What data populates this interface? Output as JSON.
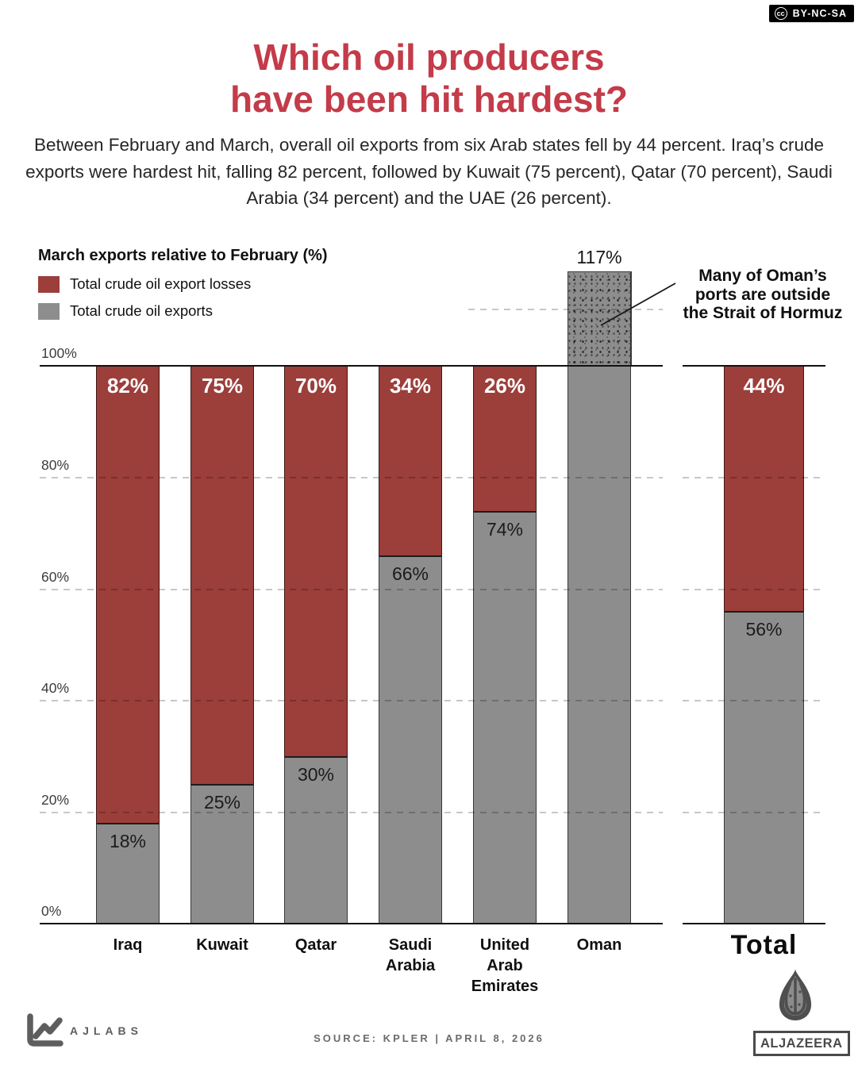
{
  "cc_badge": {
    "icon_text": "cc",
    "label": "BY-NC-SA"
  },
  "header": {
    "title_line1": "Which oil producers",
    "title_line2": "have been hit hardest?",
    "subtitle": "Between February and March, overall oil exports from six Arab states fell by 44 percent. Iraq’s crude exports were hardest hit, falling 82 percent, followed by Kuwait (75 percent), Qatar (70 percent), Saudi Arabia (34 percent) and the UAE (26 percent)."
  },
  "legend": {
    "title": "March exports relative to February (%)",
    "items": [
      {
        "label": "Total crude oil export losses",
        "color": "#9c3e3a"
      },
      {
        "label": "Total crude oil exports",
        "color": "#8d8d8d"
      }
    ]
  },
  "chart_data": {
    "type": "bar",
    "stacked": true,
    "title": "March exports relative to February (%)",
    "categories": [
      "Iraq",
      "Kuwait",
      "Qatar",
      "Saudi Arabia",
      "United Arab Emirates",
      "Oman"
    ],
    "categories_display": [
      "Iraq",
      "Kuwait",
      "Qatar",
      "Saudi\nArabia",
      "United\nArab\nEmirates",
      "Oman"
    ],
    "series": [
      {
        "name": "Total crude oil export losses",
        "color": "#9c3e3a",
        "values": [
          82,
          75,
          70,
          34,
          26,
          0
        ]
      },
      {
        "name": "Total crude oil exports",
        "color": "#8d8d8d",
        "values": [
          18,
          25,
          30,
          66,
          74,
          117
        ]
      }
    ],
    "labels": {
      "losses": [
        "82%",
        "75%",
        "70%",
        "34%",
        "26%",
        ""
      ],
      "exports": [
        "18%",
        "25%",
        "30%",
        "66%",
        "74%",
        "117%"
      ]
    },
    "total_bar": {
      "category": "Total",
      "losses": 44,
      "exports": 56,
      "losses_label": "44%",
      "exports_label": "56%"
    },
    "ylim": [
      0,
      120
    ],
    "yticks": [
      "100%",
      "80%",
      "60%",
      "40%",
      "20%",
      "0%"
    ],
    "grid": "dashed horizontal lines every 20%, solid lines at 100% and 0%",
    "guide_line_value": 110,
    "legend_position": "top-left",
    "annotation": "Many of Oman’s ports are outside the Strait of Hormuz"
  },
  "annotation": {
    "text": "Many of Oman’s\nports are outside\nthe Strait of Hormuz"
  },
  "footer": {
    "ajlabs": "AJLABS",
    "source": "SOURCE:  KPLER   |   APRIL 8, 2026",
    "brand": "ALJAZEERA"
  },
  "theme": {
    "title_red": "#c43b49",
    "bar_red": "#9c3e3a",
    "bar_gray": "#8d8d8d",
    "text": "#262626"
  }
}
